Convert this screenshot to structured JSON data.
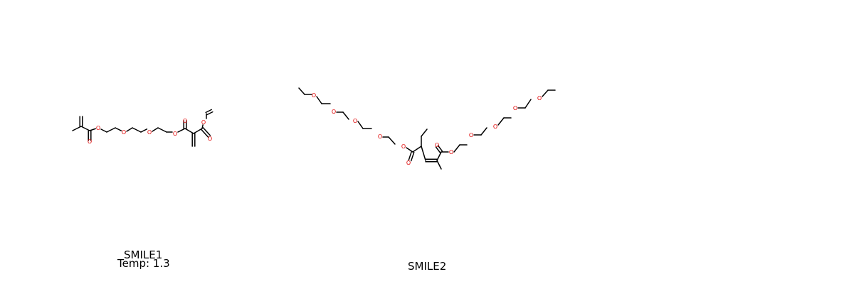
{
  "panels": [
    {
      "title": "SMILE1",
      "temp": "Temp: 1.3"
    },
    {
      "title": "SMILE2"
    },
    {
      "title": ""
    }
  ],
  "atom_label": "O",
  "colors": {
    "oxygen": "#e00000",
    "carbon": "#000000",
    "background": "#ffffff"
  }
}
